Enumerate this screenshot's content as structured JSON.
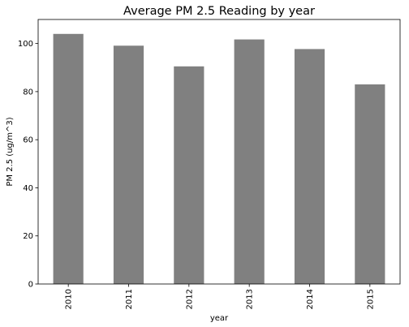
{
  "chart_data": {
    "type": "bar",
    "title": "Average PM 2.5 Reading by year",
    "xlabel": "year",
    "ylabel": "PM 2.5 (ug/m^3)",
    "categories": [
      "2010",
      "2011",
      "2012",
      "2013",
      "2014",
      "2015"
    ],
    "values": [
      104.0,
      99.1,
      90.5,
      101.7,
      97.7,
      83.0
    ],
    "ylim": [
      0,
      110
    ],
    "yticks": [
      0,
      20,
      40,
      60,
      80,
      100
    ],
    "bar_color": "#808080",
    "grid": false,
    "legend": "none"
  }
}
